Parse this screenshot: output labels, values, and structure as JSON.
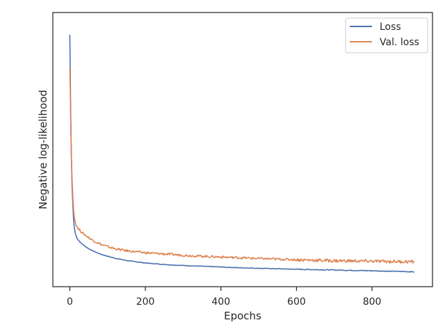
{
  "chart_data": {
    "type": "line",
    "title": "",
    "xlabel": "Epochs",
    "ylabel": "Negative log-likelihood",
    "xlim": [
      -45,
      960
    ],
    "ylim": [
      0,
      100
    ],
    "xticks": [
      0,
      200,
      400,
      600,
      800
    ],
    "show_yticks": false,
    "grid": false,
    "legend_position": "top-right",
    "series": [
      {
        "name": "Loss",
        "color": "#4c72b0",
        "x": [
          0,
          1,
          2,
          3,
          4,
          5,
          6,
          8,
          10,
          12,
          14,
          16,
          18,
          20,
          25,
          30,
          40,
          50,
          60,
          80,
          100,
          120,
          150,
          200,
          250,
          300,
          350,
          400,
          450,
          500,
          600,
          700,
          800,
          850,
          912
        ],
        "y": [
          95,
          82,
          68,
          56,
          47,
          40,
          34,
          27,
          21,
          18,
          16,
          15,
          14.2,
          13.6,
          12.6,
          11.8,
          10.6,
          9.6,
          8.8,
          7.5,
          6.6,
          5.8,
          4.9,
          3.9,
          3.3,
          2.9,
          2.6,
          2.3,
          2.0,
          1.8,
          1.4,
          1.1,
          0.8,
          0.6,
          0.4
        ]
      },
      {
        "name": "Val. loss",
        "color": "#dd8452",
        "x": [
          0,
          1,
          2,
          3,
          4,
          5,
          6,
          8,
          10,
          12,
          14,
          16,
          18,
          20,
          25,
          30,
          40,
          50,
          60,
          80,
          100,
          120,
          150,
          200,
          250,
          300,
          350,
          400,
          450,
          500,
          600,
          700,
          800,
          850,
          912
        ],
        "y": [
          82,
          74,
          64,
          55,
          48,
          42,
          37,
          30,
          25,
          22,
          20.5,
          19.5,
          18.8,
          18.2,
          17.2,
          16.4,
          15.1,
          14.0,
          13.0,
          11.5,
          10.4,
          9.6,
          8.8,
          8.0,
          7.5,
          7.0,
          6.6,
          6.3,
          6.0,
          5.7,
          5.2,
          4.8,
          4.6,
          4.5,
          4.4
        ]
      }
    ]
  }
}
